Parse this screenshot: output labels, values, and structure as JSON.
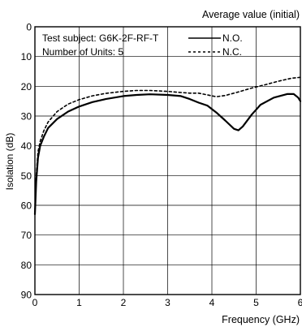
{
  "chart_data": {
    "type": "line",
    "title": "Average value (initial)",
    "xlabel": "Frequency (GHz)",
    "ylabel": "Isolation (dB)",
    "xlim": [
      0,
      6
    ],
    "ylim": [
      0,
      90
    ],
    "y_inverted": true,
    "grid": true,
    "xticks": [
      "0",
      "1",
      "2",
      "3",
      "4",
      "5",
      "6"
    ],
    "yticks": [
      "0",
      "10",
      "20",
      "30",
      "40",
      "50",
      "60",
      "70",
      "80",
      "90"
    ],
    "annotations": [
      "Test subject: G6K-2F-RF-T",
      "Number of Units: 5"
    ],
    "legend_position": "top-right",
    "series": [
      {
        "name": "N.O.",
        "line_style": "solid",
        "color": "#000000",
        "x": [
          0.0,
          0.03,
          0.07,
          0.12,
          0.2,
          0.3,
          0.5,
          0.75,
          1.0,
          1.3,
          1.6,
          2.0,
          2.3,
          2.6,
          3.0,
          3.3,
          3.5,
          3.7,
          3.9,
          4.1,
          4.3,
          4.5,
          4.6,
          4.7,
          4.9,
          5.1,
          5.4,
          5.7,
          5.85,
          5.95,
          6.0
        ],
        "y": [
          63,
          52,
          44,
          40,
          37,
          34,
          31,
          28.5,
          26.8,
          25.3,
          24.3,
          23.3,
          22.9,
          22.7,
          22.9,
          23.3,
          24.3,
          25.5,
          26.5,
          28.8,
          31.5,
          34.3,
          34.8,
          33.5,
          29.5,
          26.2,
          23.8,
          22.6,
          22.6,
          23.8,
          25
        ]
      },
      {
        "name": "N.C.",
        "line_style": "dashed",
        "color": "#000000",
        "x": [
          0.0,
          0.03,
          0.07,
          0.12,
          0.2,
          0.3,
          0.5,
          0.75,
          1.0,
          1.3,
          1.6,
          2.0,
          2.3,
          2.6,
          3.0,
          3.3,
          3.5,
          3.7,
          3.9,
          4.1,
          4.3,
          4.6,
          4.9,
          5.2,
          5.5,
          5.8,
          6.0
        ],
        "y": [
          63,
          50,
          42,
          38.5,
          35,
          32,
          28.5,
          26,
          24.5,
          23.2,
          22.4,
          21.7,
          21.4,
          21.4,
          21.7,
          22.1,
          22.3,
          22.3,
          22.9,
          23.5,
          23.1,
          21.9,
          20.6,
          19.5,
          18.3,
          17.3,
          17
        ]
      }
    ]
  }
}
